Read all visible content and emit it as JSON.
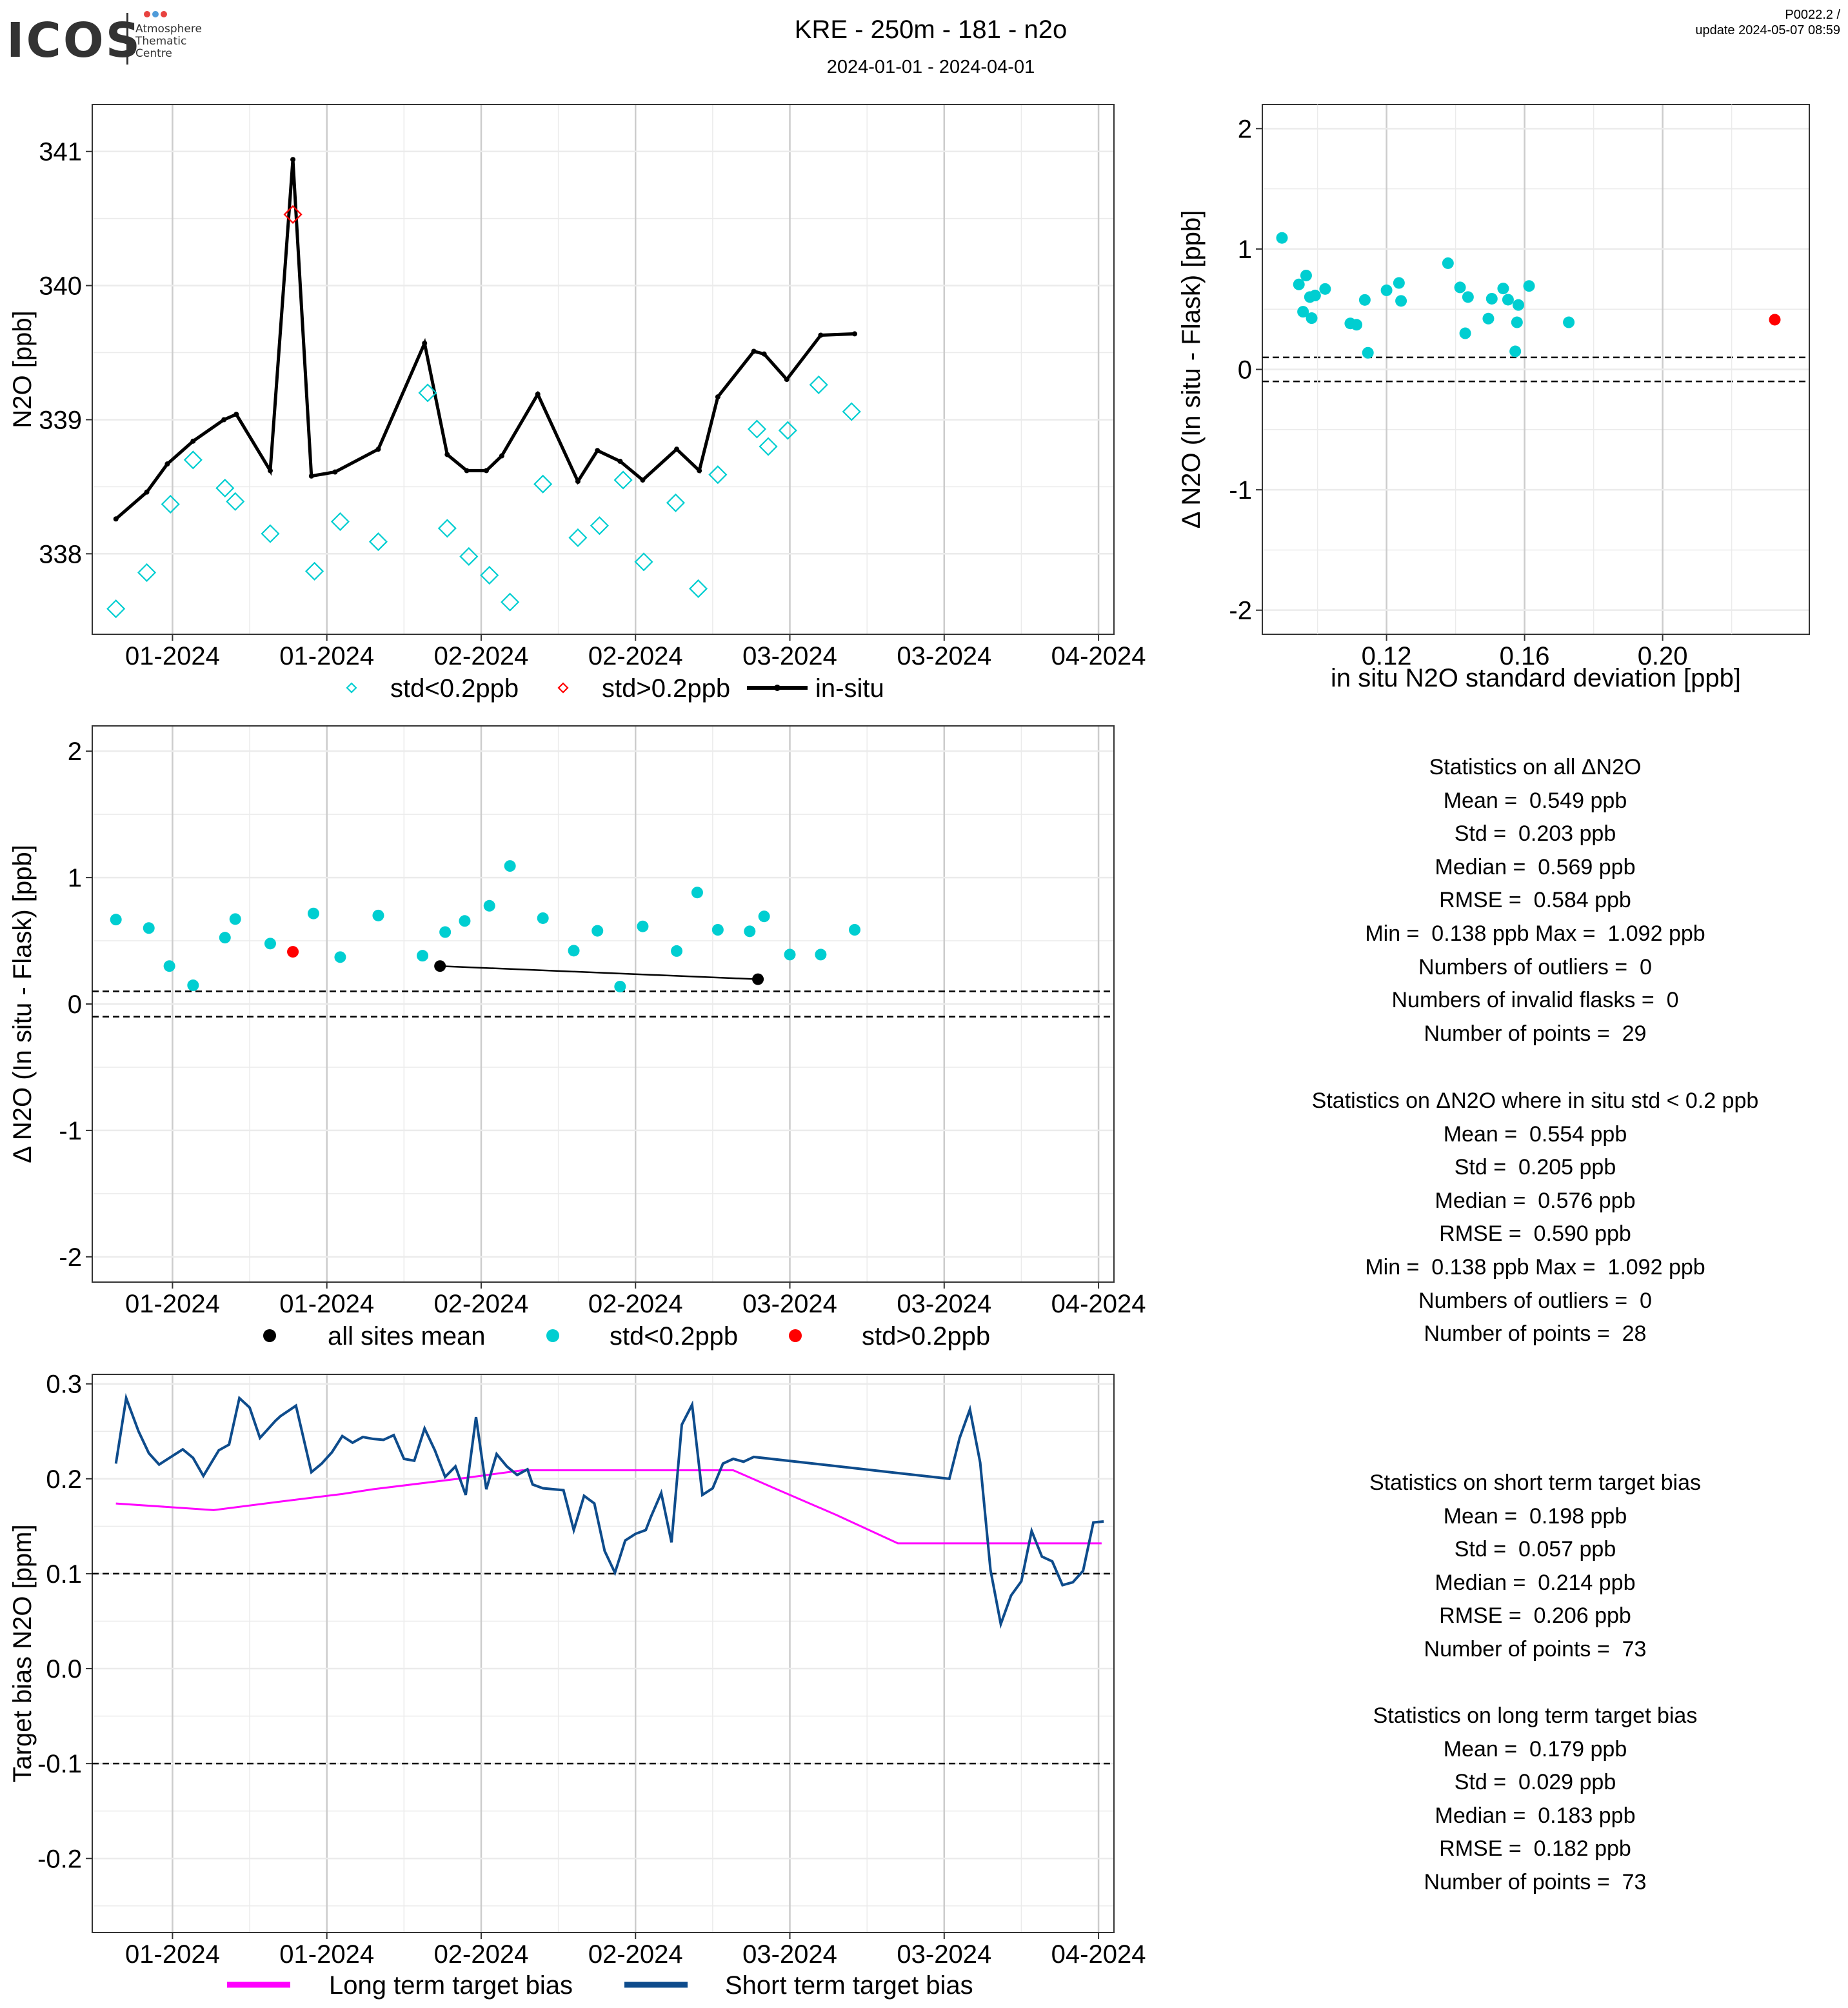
{
  "header": {
    "logo_text": "ICOS",
    "logo_sub": [
      "Atmosphere",
      "Thematic",
      "Centre"
    ],
    "title": "KRE - 250m - 181 - n2o",
    "subtitle": "2024-01-01 - 2024-04-01",
    "version": "P0022.2 /",
    "update": "update  2024-05-07 08:59"
  },
  "colors": {
    "cyan": "#00CED1",
    "red": "#FF0000",
    "black": "#000000",
    "magenta": "#FF00FF",
    "navy": "#0E4C8C",
    "grid_major": "#CCCCCC",
    "grid_minor": "#EBEBEB"
  },
  "stats_all": {
    "lines": [
      "Statistics on all ΔN2O",
      "Mean =  0.549 ppb",
      "Std =  0.203 ppb",
      "Median =  0.569 ppb",
      "RMSE =  0.584 ppb",
      "Min =  0.138 ppb Max =  1.092 ppb",
      "Numbers of outliers =  0",
      "Numbers of invalid flasks =  0",
      "Number of points =  29"
    ]
  },
  "stats_std": {
    "lines": [
      "Statistics on ΔN2O where in situ std < 0.2 ppb",
      "Mean =  0.554 ppb",
      "Std =  0.205 ppb",
      "Median =  0.576 ppb",
      "RMSE =  0.590 ppb",
      "Min =  0.138 ppb Max =  1.092 ppb",
      "Numbers of outliers =  0",
      "Number of points =  28"
    ]
  },
  "stats_short": {
    "lines": [
      "Statistics on short term target bias",
      "Mean =  0.198 ppb",
      "Std =  0.057 ppb",
      "Median =  0.214 ppb",
      "RMSE =  0.206 ppb",
      "Number of points =  73"
    ]
  },
  "stats_long": {
    "lines": [
      "Statistics on long term target bias",
      "Mean =  0.179 ppb",
      "Std =  0.029 ppb",
      "Median =  0.183 ppb",
      "RMSE =  0.182 ppb",
      "Number of points =  73"
    ]
  },
  "chart_data": [
    {
      "id": "timeseries",
      "type": "line",
      "ylabel": "N2O [ppb]",
      "x_tick_labels": [
        "01-2024",
        "01-2024",
        "02-2024",
        "02-2024",
        "03-2024",
        "03-2024",
        "04-2024"
      ],
      "x_ticks": [
        7.5,
        22.5,
        37.5,
        52.5,
        67.5,
        82.5,
        97.5
      ],
      "xlim": [
        -0.3,
        99
      ],
      "ylim": [
        337.4,
        341.35
      ],
      "y_ticks": [
        338,
        339,
        340,
        341
      ],
      "legend": [
        "std<0.2ppb",
        "std>0.2ppb",
        "in-situ"
      ],
      "in_situ": {
        "name": "in-situ",
        "x": [
          2,
          5,
          7,
          9.5,
          12.5,
          13.7,
          17,
          19.2,
          21,
          23.3,
          27.5,
          32,
          34.2,
          36.1,
          38,
          39.5,
          43,
          46.9,
          48.8,
          51,
          53.2,
          56.5,
          58.7,
          60.5,
          64,
          65,
          67.2,
          70.5,
          73.8
        ],
        "y": [
          338.26,
          338.46,
          338.67,
          338.84,
          339,
          339.04,
          338.62,
          340.94,
          338.58,
          338.61,
          338.78,
          339.57,
          338.74,
          338.62,
          338.62,
          338.73,
          339.19,
          338.54,
          338.77,
          338.69,
          338.55,
          338.78,
          338.62,
          339.17,
          339.51,
          339.49,
          339.3,
          339.63,
          339.64
        ]
      },
      "flask_low_std": {
        "name": "std<0.2ppb",
        "x": [
          2,
          5,
          7.3,
          9.5,
          12.6,
          13.6,
          17,
          21.3,
          23.8,
          27.5,
          32.3,
          34.2,
          36.3,
          38.3,
          40.3,
          43.5,
          46.9,
          49,
          51.3,
          53.3,
          56.4,
          58.6,
          60.5,
          64.3,
          65.4,
          67.3,
          70.3,
          73.5
        ],
        "y": [
          337.59,
          337.86,
          338.37,
          338.7,
          338.49,
          338.39,
          338.15,
          337.87,
          338.24,
          338.09,
          339.2,
          338.19,
          337.98,
          337.84,
          337.64,
          338.52,
          338.12,
          338.21,
          338.55,
          337.94,
          338.38,
          337.74,
          338.59,
          338.93,
          338.8,
          338.92,
          339.26,
          339.06
        ]
      },
      "flask_high_std": {
        "name": "std>0.2ppb",
        "x": [
          19.2
        ],
        "y": [
          340.53
        ]
      }
    },
    {
      "id": "delta_vs_std",
      "type": "scatter",
      "xlabel": "in situ N2O standard deviation [ppb]",
      "ylabel": "Δ N2O (In situ - Flask) [ppb]",
      "xlim": [
        0.084,
        0.2425
      ],
      "ylim": [
        -2.2,
        2.2
      ],
      "x_tick_labels": [
        "0.12",
        "0.16",
        "0.20"
      ],
      "x_ticks": [
        0.12,
        0.16,
        0.2
      ],
      "y_ticks": [
        -2,
        -1,
        0,
        1,
        2
      ],
      "hlines": [
        0.1,
        -0.1
      ],
      "low_std": {
        "x": [
          0.0897,
          0.0946,
          0.0958,
          0.0967,
          0.0978,
          0.0983,
          0.0993,
          0.1022,
          0.1095,
          0.1113,
          0.1137,
          0.1146,
          0.12,
          0.1236,
          0.1242,
          0.1378,
          0.1413,
          0.1428,
          0.1436,
          0.1495,
          0.1505,
          0.1538,
          0.1552,
          0.1573,
          0.1578,
          0.1582,
          0.1613,
          0.1728
        ],
        "y": [
          1.092,
          0.706,
          0.479,
          0.78,
          0.601,
          0.426,
          0.614,
          0.668,
          0.382,
          0.371,
          0.577,
          0.138,
          0.657,
          0.718,
          0.569,
          0.882,
          0.681,
          0.3,
          0.601,
          0.422,
          0.587,
          0.672,
          0.579,
          0.15,
          0.391,
          0.535,
          0.693,
          0.391
        ]
      },
      "high_std": {
        "x": [
          0.2325
        ],
        "y": [
          0.413
        ]
      }
    },
    {
      "id": "delta_timeseries",
      "type": "scatter",
      "ylabel": "Δ N2O (In situ - Flask) [ppb]",
      "x_tick_labels": [
        "01-2024",
        "01-2024",
        "02-2024",
        "02-2024",
        "03-2024",
        "03-2024",
        "04-2024"
      ],
      "x_ticks": [
        7.5,
        22.5,
        37.5,
        52.5,
        67.5,
        82.5,
        97.5
      ],
      "xlim": [
        -0.3,
        99
      ],
      "ylim": [
        -2.2,
        2.2
      ],
      "y_ticks": [
        -2,
        -1,
        0,
        1,
        2
      ],
      "hlines": [
        0.1,
        -0.1
      ],
      "legend": [
        "all sites mean",
        "std<0.2ppb",
        "std>0.2ppb"
      ],
      "all_sites_mean": {
        "x": [
          33.5,
          64.4
        ],
        "y": [
          0.3,
          0.196
        ]
      },
      "low_std": {
        "x": [
          2,
          5.2,
          7.2,
          9.5,
          12.6,
          13.6,
          17,
          21.2,
          23.8,
          27.5,
          31.8,
          34,
          35.9,
          38.3,
          40.3,
          43.5,
          46.5,
          48.8,
          51,
          53.2,
          56.5,
          58.5,
          60.5,
          63.6,
          65,
          67.5,
          70.5,
          73.8
        ],
        "y": [
          0.668,
          0.601,
          0.3,
          0.148,
          0.525,
          0.672,
          0.478,
          0.716,
          0.371,
          0.7,
          0.382,
          0.569,
          0.657,
          0.777,
          1.092,
          0.679,
          0.422,
          0.579,
          0.138,
          0.614,
          0.419,
          0.882,
          0.587,
          0.575,
          0.693,
          0.391,
          0.391,
          0.587
        ]
      },
      "high_std": {
        "x": [
          19.2
        ],
        "y": [
          0.413
        ]
      }
    },
    {
      "id": "target_bias",
      "type": "line",
      "ylabel": "Target bias N2O [ppm]",
      "x_tick_labels": [
        "01-2024",
        "01-2024",
        "02-2024",
        "02-2024",
        "03-2024",
        "03-2024",
        "04-2024"
      ],
      "x_ticks": [
        7.5,
        22.5,
        37.5,
        52.5,
        67.5,
        82.5,
        97.5
      ],
      "xlim": [
        -0.3,
        99
      ],
      "ylim": [
        -0.278,
        0.31
      ],
      "y_ticks": [
        -0.2,
        -0.1,
        0.0,
        0.1,
        0.2,
        0.3
      ],
      "y_tick_labels": [
        "-0.2",
        "-0.1",
        "0.0",
        "0.1",
        "0.2",
        "0.3"
      ],
      "hlines": [
        0.1,
        -0.1
      ],
      "legend": [
        "Long term target bias",
        "Short term target bias"
      ],
      "long_term": {
        "name": "Long term target bias",
        "x": [
          2,
          11.5,
          18,
          24,
          27,
          36,
          41.5,
          48,
          54,
          57,
          62,
          66,
          72,
          78,
          83,
          88,
          93,
          97.8
        ],
        "y": [
          0.174,
          0.167,
          0.176,
          0.184,
          0.189,
          0.201,
          0.209,
          0.209,
          0.209,
          0.209,
          0.209,
          0.19,
          0.162,
          0.132,
          0.132,
          0.132,
          0.132,
          0.132
        ]
      },
      "short_term": {
        "name": "Short term target bias",
        "x": [
          2,
          3,
          4.2,
          5.2,
          6.2,
          8.5,
          9.5,
          10.5,
          12,
          13,
          14,
          15,
          16,
          17.5,
          18,
          19.5,
          21,
          22,
          23,
          24,
          25,
          26,
          27,
          28,
          29,
          30,
          31,
          32,
          33,
          34,
          35,
          36,
          37,
          38,
          39,
          40,
          41,
          42,
          42.5,
          43.5,
          44.5,
          45.5,
          46.5,
          47.5,
          48.5,
          49.5,
          50.5,
          51.5,
          52.5,
          53.5,
          54,
          55,
          56,
          57,
          58,
          59,
          60,
          61,
          62,
          63,
          64,
          83,
          84,
          85,
          86,
          87,
          88,
          89,
          90,
          91,
          92,
          93,
          94,
          95,
          96,
          97,
          98
        ],
        "y": [
          0.216,
          0.285,
          0.25,
          0.227,
          0.215,
          0.231,
          0.222,
          0.203,
          0.23,
          0.236,
          0.285,
          0.275,
          0.243,
          0.261,
          0.266,
          0.277,
          0.207,
          0.216,
          0.228,
          0.245,
          0.238,
          0.244,
          0.242,
          0.241,
          0.246,
          0.221,
          0.219,
          0.253,
          0.23,
          0.202,
          0.213,
          0.183,
          0.265,
          0.189,
          0.226,
          0.213,
          0.204,
          0.21,
          0.194,
          0.19,
          0.189,
          0.188,
          0.146,
          0.182,
          0.174,
          0.124,
          0.101,
          0.135,
          0.142,
          0.146,
          0.16,
          0.185,
          0.133,
          0.257,
          0.278,
          0.183,
          0.19,
          0.216,
          0.221,
          0.218,
          0.223,
          0.2,
          0.243,
          0.273,
          0.217,
          0.104,
          0.047,
          0.077,
          0.092,
          0.145,
          0.118,
          0.113,
          0.088,
          0.091,
          0.103,
          0.154,
          0.155
        ]
      }
    }
  ]
}
